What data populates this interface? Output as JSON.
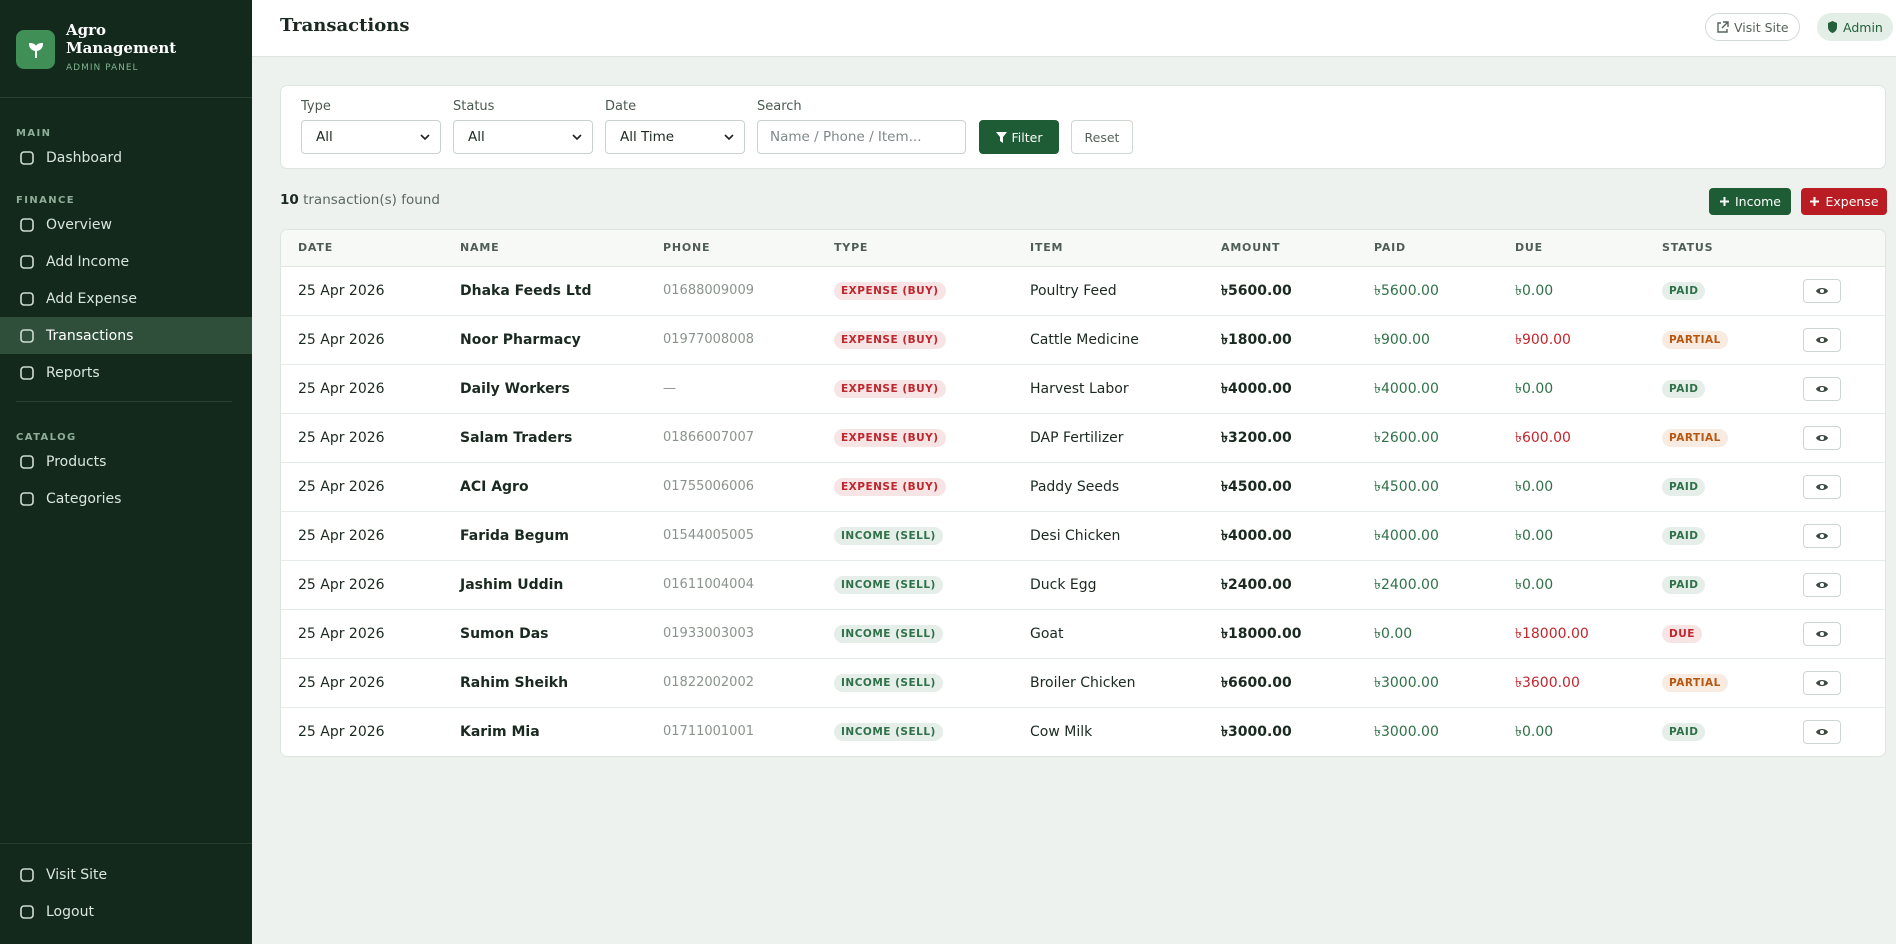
{
  "sidebar": {
    "brand": {
      "title": "Agro Management",
      "subtitle": "ADMIN PANEL"
    },
    "sections": [
      {
        "label": "MAIN",
        "items": [
          "Dashboard"
        ]
      },
      {
        "label": "FINANCE",
        "items": [
          "Overview",
          "Add Income",
          "Add Expense",
          "Transactions",
          "Reports"
        ]
      },
      {
        "label": "CATALOG",
        "items": [
          "Products",
          "Categories"
        ]
      }
    ],
    "active": "Transactions",
    "footer": [
      "Visit Site",
      "Logout"
    ]
  },
  "header": {
    "title": "Transactions",
    "visit_site": "Visit Site",
    "user": "Admin"
  },
  "filters": {
    "type": {
      "label": "Type",
      "value": "All"
    },
    "status": {
      "label": "Status",
      "value": "All"
    },
    "date": {
      "label": "Date",
      "value": "All Time"
    },
    "search": {
      "label": "Search",
      "placeholder": "Name / Phone / Item..."
    },
    "filter_button": "Filter",
    "reset_button": "Reset"
  },
  "summary": {
    "count": "10",
    "text": "transaction(s) found"
  },
  "actions": {
    "income": "Income",
    "expense": "Expense"
  },
  "table": {
    "columns": [
      "DATE",
      "NAME",
      "PHONE",
      "TYPE",
      "ITEM",
      "AMOUNT",
      "PAID",
      "DUE",
      "STATUS"
    ],
    "rows": [
      {
        "date": "25 Apr 2026",
        "name": "Dhaka Feeds Ltd",
        "phone": "01688009009",
        "type": "EXPENSE (BUY)",
        "type_color": "#c0262d",
        "item": "Poultry Feed",
        "amount": "৳5600.00",
        "paid": "৳5600.00",
        "due": "৳0.00",
        "due_color": "#2f7148",
        "status": "PAID",
        "status_color": "#2f7148"
      },
      {
        "date": "25 Apr 2026",
        "name": "Noor Pharmacy",
        "phone": "01977008008",
        "type": "EXPENSE (BUY)",
        "type_color": "#c0262d",
        "item": "Cattle Medicine",
        "amount": "৳1800.00",
        "paid": "৳900.00",
        "due": "৳900.00",
        "due_color": "#c0262d",
        "status": "PARTIAL",
        "status_color": "#b9570f"
      },
      {
        "date": "25 Apr 2026",
        "name": "Daily Workers",
        "phone": "—",
        "type": "EXPENSE (BUY)",
        "type_color": "#c0262d",
        "item": "Harvest Labor",
        "amount": "৳4000.00",
        "paid": "৳4000.00",
        "due": "৳0.00",
        "due_color": "#2f7148",
        "status": "PAID",
        "status_color": "#2f7148"
      },
      {
        "date": "25 Apr 2026",
        "name": "Salam Traders",
        "phone": "01866007007",
        "type": "EXPENSE (BUY)",
        "type_color": "#c0262d",
        "item": "DAP Fertilizer",
        "amount": "৳3200.00",
        "paid": "৳2600.00",
        "due": "৳600.00",
        "due_color": "#c0262d",
        "status": "PARTIAL",
        "status_color": "#b9570f"
      },
      {
        "date": "25 Apr 2026",
        "name": "ACI Agro",
        "phone": "01755006006",
        "type": "EXPENSE (BUY)",
        "type_color": "#c0262d",
        "item": "Paddy Seeds",
        "amount": "৳4500.00",
        "paid": "৳4500.00",
        "due": "৳0.00",
        "due_color": "#2f7148",
        "status": "PAID",
        "status_color": "#2f7148"
      },
      {
        "date": "25 Apr 2026",
        "name": "Farida Begum",
        "phone": "01544005005",
        "type": "INCOME (SELL)",
        "type_color": "#2f7148",
        "item": "Desi Chicken",
        "amount": "৳4000.00",
        "paid": "৳4000.00",
        "due": "৳0.00",
        "due_color": "#2f7148",
        "status": "PAID",
        "status_color": "#2f7148"
      },
      {
        "date": "25 Apr 2026",
        "name": "Jashim Uddin",
        "phone": "01611004004",
        "type": "INCOME (SELL)",
        "type_color": "#2f7148",
        "item": "Duck Egg",
        "amount": "৳2400.00",
        "paid": "৳2400.00",
        "due": "৳0.00",
        "due_color": "#2f7148",
        "status": "PAID",
        "status_color": "#2f7148"
      },
      {
        "date": "25 Apr 2026",
        "name": "Sumon Das",
        "phone": "01933003003",
        "type": "INCOME (SELL)",
        "type_color": "#2f7148",
        "item": "Goat",
        "amount": "৳18000.00",
        "paid": "৳0.00",
        "due": "৳18000.00",
        "due_color": "#c0262d",
        "status": "DUE",
        "status_color": "#c0262d"
      },
      {
        "date": "25 Apr 2026",
        "name": "Rahim Sheikh",
        "phone": "01822002002",
        "type": "INCOME (SELL)",
        "type_color": "#2f7148",
        "item": "Broiler Chicken",
        "amount": "৳6600.00",
        "paid": "৳3000.00",
        "due": "৳3600.00",
        "due_color": "#c0262d",
        "status": "PARTIAL",
        "status_color": "#b9570f"
      },
      {
        "date": "25 Apr 2026",
        "name": "Karim Mia",
        "phone": "01711001001",
        "type": "INCOME (SELL)",
        "type_color": "#2f7148",
        "item": "Cow Milk",
        "amount": "৳3000.00",
        "paid": "৳3000.00",
        "due": "৳0.00",
        "due_color": "#2f7148",
        "status": "PAID",
        "status_color": "#2f7148"
      }
    ]
  }
}
